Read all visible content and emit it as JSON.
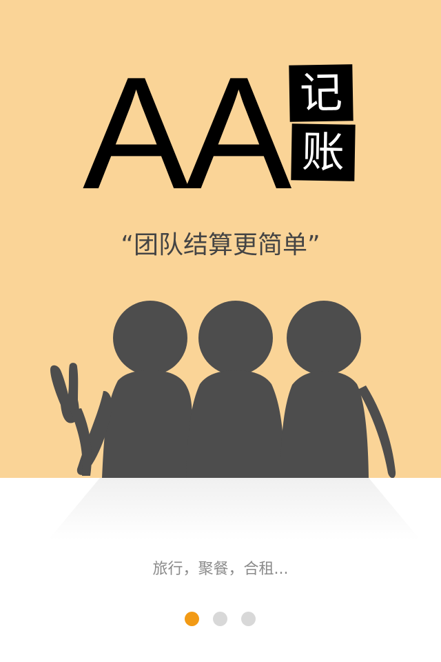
{
  "hero": {
    "title_letters": "AA",
    "title_char_1": "记",
    "title_char_2": "账",
    "slogan": "“团队结算更简单”"
  },
  "subtitle": "旅行，聚餐，合租...",
  "pagination": {
    "total": 3,
    "active_index": 0
  },
  "colors": {
    "hero_background": "#fad497",
    "silhouette": "#4d4d4d",
    "active_dot": "#f29a15",
    "inactive_dot": "#d8d8d8",
    "subtitle_text": "#8a8a8a",
    "slogan_text": "#444444"
  }
}
